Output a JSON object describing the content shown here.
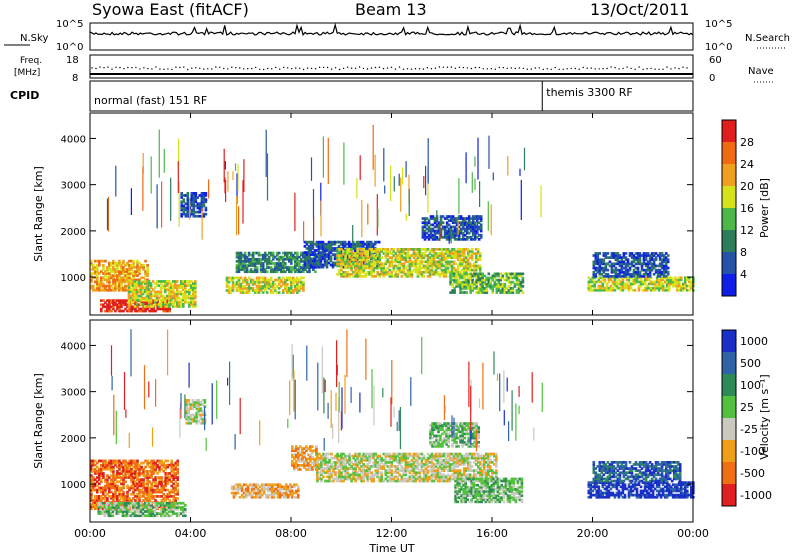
{
  "header": {
    "station": "Syowa East (fitACF)",
    "beam": "Beam 13",
    "date": "13/Oct/2011"
  },
  "nsky_panel": {
    "left_label": "N.Sky",
    "left_ticks": [
      "10^5",
      "10^0"
    ],
    "right_label": "N.Search",
    "right_ticks": [
      "10^5",
      "10^0"
    ]
  },
  "freq_panel": {
    "left_label_line1": "Freq.",
    "left_label_line2": "[MHz]",
    "left_ticks": [
      "18",
      "8"
    ],
    "right_label": "Nave",
    "right_ticks": [
      "60",
      "0"
    ]
  },
  "cpid_panel": {
    "label": "CPID",
    "segments": [
      {
        "start_hour": 0,
        "end_hour": 18,
        "text": "normal (fast) 151 RF"
      },
      {
        "start_hour": 18,
        "end_hour": 24,
        "text": "themis 3300 RF"
      }
    ]
  },
  "x_axis": {
    "title": "Time UT",
    "tick_labels": [
      "00:00",
      "04:00",
      "08:00",
      "12:00",
      "16:00",
      "20:00",
      "00:00"
    ],
    "range_hours": [
      0,
      24
    ]
  },
  "power_colorbar": {
    "title": "Power [dB]",
    "tick_labels": [
      "4",
      "8",
      "12",
      "16",
      "20",
      "24",
      "28"
    ],
    "colors": [
      "#0f1ee6",
      "#2453a8",
      "#2e7d5a",
      "#4db84a",
      "#d6e21a",
      "#f0a020",
      "#f06a14",
      "#e01e1e"
    ]
  },
  "velocity_colorbar": {
    "title": "Velocity [m s⁻¹]",
    "tick_labels": [
      "1000",
      "500",
      "100",
      "25",
      "-25",
      "-100",
      "-500",
      "-1000"
    ],
    "colors": [
      "#1a2fc8",
      "#2e64a6",
      "#2e8a56",
      "#52c23e",
      "#c9c9c0",
      "#f0a018",
      "#f06e14",
      "#e02020"
    ]
  },
  "chart_data": [
    {
      "type": "heatmap",
      "title": "Power",
      "ylabel": "Slant Range [km]",
      "xlabel": "",
      "ylim": [
        180,
        4550
      ],
      "yticks": [
        1000,
        2000,
        3000,
        4000
      ],
      "xlim": [
        0,
        24
      ],
      "grid": false,
      "regions": [
        {
          "t": [
            0.0,
            2.3
          ],
          "r": [
            700,
            1350
          ],
          "level": 5
        },
        {
          "t": [
            0.4,
            3.2
          ],
          "r": [
            250,
            500
          ],
          "level": 7
        },
        {
          "t": [
            1.5,
            4.2
          ],
          "r": [
            350,
            900
          ],
          "level": 4
        },
        {
          "t": [
            3.6,
            4.6
          ],
          "r": [
            2300,
            2800
          ],
          "level": 1
        },
        {
          "t": [
            5.4,
            8.5
          ],
          "r": [
            650,
            1000
          ],
          "level": 4
        },
        {
          "t": [
            5.8,
            9.0
          ],
          "r": [
            1100,
            1550
          ],
          "level": 2
        },
        {
          "t": [
            8.5,
            11.5
          ],
          "r": [
            1200,
            1750
          ],
          "level": 1
        },
        {
          "t": [
            9.8,
            15.5
          ],
          "r": [
            1000,
            1600
          ],
          "level": 4
        },
        {
          "t": [
            13.2,
            15.6
          ],
          "r": [
            1800,
            2300
          ],
          "level": 1
        },
        {
          "t": [
            14.3,
            17.2
          ],
          "r": [
            650,
            1100
          ],
          "level": 3
        },
        {
          "t": [
            19.8,
            24.0
          ],
          "r": [
            700,
            1000
          ],
          "level": 4
        },
        {
          "t": [
            20.0,
            23.0
          ],
          "r": [
            1000,
            1500
          ],
          "level": 1
        }
      ]
    },
    {
      "type": "heatmap",
      "title": "Velocity",
      "ylabel": "Slant Range [km]",
      "xlabel": "Time UT",
      "ylim": [
        180,
        4550
      ],
      "yticks": [
        1000,
        2000,
        3000,
        4000
      ],
      "xlim": [
        0,
        24
      ],
      "grid": false,
      "regions": [
        {
          "t": [
            0.0,
            3.5
          ],
          "r": [
            450,
            1500
          ],
          "level": 6
        },
        {
          "t": [
            0.3,
            3.8
          ],
          "r": [
            300,
            600
          ],
          "level": 3
        },
        {
          "t": [
            3.8,
            4.6
          ],
          "r": [
            2300,
            2800
          ],
          "level": 4
        },
        {
          "t": [
            5.6,
            8.3
          ],
          "r": [
            700,
            1000
          ],
          "level": 5
        },
        {
          "t": [
            8.0,
            9.0
          ],
          "r": [
            1300,
            1800
          ],
          "level": 5
        },
        {
          "t": [
            9.0,
            16.2
          ],
          "r": [
            1050,
            1650
          ],
          "level": 4
        },
        {
          "t": [
            14.5,
            17.2
          ],
          "r": [
            600,
            1100
          ],
          "level": 3
        },
        {
          "t": [
            13.5,
            15.5
          ],
          "r": [
            1800,
            2300
          ],
          "level": 3
        },
        {
          "t": [
            19.8,
            24.0
          ],
          "r": [
            700,
            1050
          ],
          "level": 0
        },
        {
          "t": [
            20.0,
            23.5
          ],
          "r": [
            1050,
            1500
          ],
          "level": 1
        }
      ]
    }
  ]
}
